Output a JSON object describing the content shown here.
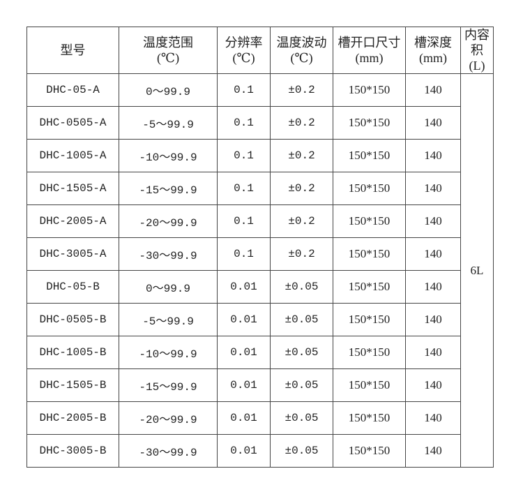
{
  "header": [
    {
      "title": "型号",
      "unit": ""
    },
    {
      "title": "温度范围",
      "unit": "(℃)"
    },
    {
      "title": "分辨率",
      "unit": "(℃)"
    },
    {
      "title": "温度波动",
      "unit": "(℃)"
    },
    {
      "title": "槽开口尺寸",
      "unit": "(mm)"
    },
    {
      "title": "槽深度",
      "unit": "(mm)"
    },
    {
      "title": "内容积",
      "unit": "(L)"
    }
  ],
  "volume": "6L",
  "rows": [
    [
      "DHC-05-A",
      "0～99.9",
      "0.1",
      "±0.2",
      "150*150",
      "140"
    ],
    [
      "DHC-0505-A",
      "-5～99.9",
      "0.1",
      "±0.2",
      "150*150",
      "140"
    ],
    [
      "DHC-1005-A",
      "-10～99.9",
      "0.1",
      "±0.2",
      "150*150",
      "140"
    ],
    [
      "DHC-1505-A",
      "-15～99.9",
      "0.1",
      "±0.2",
      "150*150",
      "140"
    ],
    [
      "DHC-2005-A",
      "-20～99.9",
      "0.1",
      "±0.2",
      "150*150",
      "140"
    ],
    [
      "DHC-3005-A",
      "-30～99.9",
      "0.1",
      "±0.2",
      "150*150",
      "140"
    ],
    [
      "DHC-05-B",
      "0～99.9",
      "0.01",
      "±0.05",
      "150*150",
      "140"
    ],
    [
      "DHC-0505-B",
      "-5～99.9",
      "0.01",
      "±0.05",
      "150*150",
      "140"
    ],
    [
      "DHC-1005-B",
      "-10～99.9",
      "0.01",
      "±0.05",
      "150*150",
      "140"
    ],
    [
      "DHC-1505-B",
      "-15～99.9",
      "0.01",
      "±0.05",
      "150*150",
      "140"
    ],
    [
      "DHC-2005-B",
      "-20～99.9",
      "0.01",
      "±0.05",
      "150*150",
      "140"
    ],
    [
      "DHC-3005-B",
      "-30～99.9",
      "0.01",
      "±0.05",
      "150*150",
      "140"
    ]
  ]
}
